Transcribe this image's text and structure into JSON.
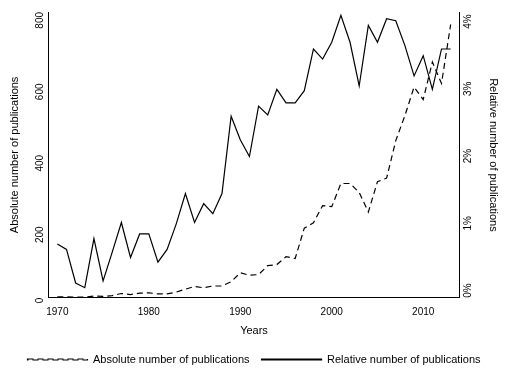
{
  "chart_data": {
    "type": "line",
    "x_label": "Years",
    "y_label": "Absolute number of publications",
    "y2_label": "Relative number of publications",
    "x": [
      1970,
      1971,
      1972,
      1973,
      1974,
      1975,
      1976,
      1977,
      1978,
      1979,
      1980,
      1981,
      1982,
      1983,
      1984,
      1985,
      1986,
      1987,
      1988,
      1989,
      1990,
      1991,
      1992,
      1993,
      1994,
      1995,
      1996,
      1997,
      1998,
      1999,
      2000,
      2001,
      2002,
      2003,
      2004,
      2005,
      2006,
      2007,
      2008,
      2009,
      2010,
      2011,
      2012,
      2013
    ],
    "series": [
      {
        "name": "Absolute number of publications",
        "color": "#000000",
        "line_style": "dashed",
        "axis": "y",
        "values": [
          3,
          3,
          2,
          2,
          5,
          4,
          6,
          12,
          9,
          13,
          14,
          11,
          11,
          16,
          24,
          32,
          28,
          33,
          33,
          45,
          70,
          63,
          65,
          90,
          93,
          115,
          110,
          195,
          210,
          258,
          255,
          320,
          320,
          295,
          240,
          325,
          335,
          440,
          510,
          590,
          555,
          660,
          600,
          765
        ]
      },
      {
        "name": "Relative number of publications",
        "color": "#000000",
        "line_style": "solid",
        "axis": "y2",
        "values": [
          0.8,
          0.72,
          0.22,
          0.15,
          0.88,
          0.25,
          0.68,
          1.12,
          0.6,
          0.95,
          0.95,
          0.53,
          0.72,
          1.1,
          1.55,
          1.12,
          1.4,
          1.25,
          1.55,
          2.7,
          2.35,
          2.1,
          2.85,
          2.72,
          3.1,
          2.9,
          2.9,
          3.08,
          3.7,
          3.55,
          3.8,
          4.2,
          3.8,
          3.15,
          4.05,
          3.8,
          4.15,
          4.12,
          3.75,
          3.3,
          3.6,
          3.1,
          3.7,
          3.7
        ]
      }
    ],
    "xlim": [
      1969,
      2014
    ],
    "xticks": [
      1970,
      1980,
      1990,
      2000,
      2010
    ],
    "ylim": [
      0,
      800
    ],
    "yticks": [
      0,
      200,
      400,
      600,
      800
    ],
    "y2lim": [
      0,
      4.25
    ],
    "y2ticks": [
      {
        "value": 0,
        "label": "0%"
      },
      {
        "value": 1,
        "label": "1%"
      },
      {
        "value": 2,
        "label": "2%"
      },
      {
        "value": 3,
        "label": "3%"
      },
      {
        "value": 4,
        "label": "4%"
      }
    ],
    "grid": false,
    "legend": "bottom"
  }
}
